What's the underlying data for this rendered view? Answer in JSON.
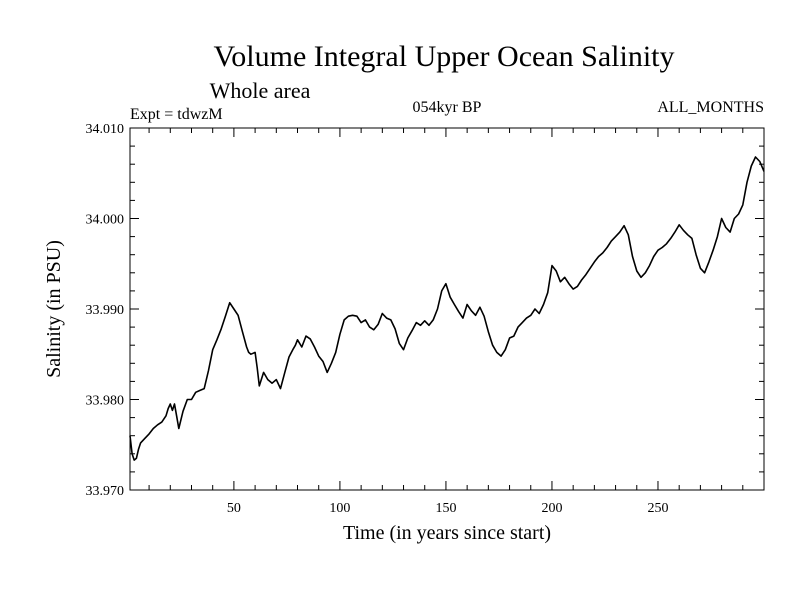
{
  "chart_data": {
    "type": "line",
    "title": "Volume Integral Upper Ocean Salinity",
    "subtitle": "Whole area",
    "annotations": {
      "left": "Expt = tdwzM",
      "center": "054kyr BP",
      "right": "ALL_MONTHS"
    },
    "xlabel": "Time (in years since start)",
    "ylabel": "Salinity (in PSU)",
    "xlim": [
      1,
      300
    ],
    "ylim": [
      33.97,
      34.01
    ],
    "xticks": [
      50,
      100,
      150,
      200,
      250
    ],
    "xtick_labels": [
      "50",
      "100",
      "150",
      "200",
      "250"
    ],
    "yticks": [
      33.97,
      33.98,
      33.99,
      34.0,
      34.01
    ],
    "ytick_labels": [
      "33.970",
      "33.980",
      "33.990",
      "34.000",
      "34.010"
    ],
    "grid": false,
    "series": [
      {
        "color": "#000000",
        "x": [
          1,
          2,
          3,
          4,
          5,
          6,
          8,
          10,
          12,
          14,
          16,
          18,
          19,
          20,
          21,
          22,
          23,
          24,
          26,
          28,
          30,
          32,
          34,
          36,
          38,
          40,
          42,
          44,
          46,
          48,
          50,
          52,
          54,
          56,
          57,
          58,
          59,
          60,
          61,
          62,
          64,
          66,
          68,
          70,
          72,
          74,
          76,
          78,
          79,
          80,
          82,
          84,
          86,
          88,
          90,
          92,
          94,
          96,
          98,
          100,
          102,
          104,
          106,
          108,
          110,
          112,
          114,
          116,
          118,
          120,
          122,
          124,
          126,
          128,
          130,
          132,
          134,
          136,
          138,
          140,
          142,
          144,
          146,
          148,
          150,
          152,
          154,
          156,
          158,
          160,
          162,
          164,
          166,
          168,
          170,
          172,
          174,
          176,
          178,
          180,
          182,
          184,
          186,
          188,
          190,
          192,
          194,
          196,
          198,
          200,
          202,
          204,
          206,
          208,
          210,
          212,
          214,
          216,
          218,
          220,
          222,
          224,
          226,
          228,
          230,
          232,
          234,
          236,
          238,
          240,
          242,
          244,
          246,
          248,
          250,
          252,
          254,
          256,
          258,
          260,
          262,
          264,
          266,
          268,
          270,
          272,
          274,
          276,
          278,
          280,
          282,
          284,
          286,
          288,
          290,
          292,
          294,
          296,
          298,
          300
        ],
        "y": [
          33.976,
          33.974,
          33.9733,
          33.9735,
          33.9745,
          33.9752,
          33.9757,
          33.9762,
          33.9768,
          33.9772,
          33.9775,
          33.9782,
          33.979,
          33.9795,
          33.9788,
          33.9795,
          33.9782,
          33.9768,
          33.9787,
          33.98,
          33.98,
          33.9808,
          33.981,
          33.9812,
          33.9832,
          33.9855,
          33.9866,
          33.9878,
          33.9892,
          33.9907,
          33.99,
          33.9893,
          33.9875,
          33.9858,
          33.9852,
          33.985,
          33.9851,
          33.9852,
          33.9835,
          33.9815,
          33.983,
          33.9822,
          33.9818,
          33.9822,
          33.9812,
          33.983,
          33.9847,
          33.9856,
          33.986,
          33.9866,
          33.9858,
          33.987,
          33.9867,
          33.9858,
          33.9848,
          33.9842,
          33.983,
          33.984,
          33.9852,
          33.9872,
          33.9888,
          33.9892,
          33.9893,
          33.9892,
          33.9885,
          33.9888,
          33.988,
          33.9877,
          33.9883,
          33.9895,
          33.989,
          33.9888,
          33.9878,
          33.9862,
          33.9855,
          33.9868,
          33.9876,
          33.9885,
          33.9882,
          33.9887,
          33.9882,
          33.9888,
          33.99,
          33.992,
          33.9928,
          33.9913,
          33.9905,
          33.9897,
          33.989,
          33.9905,
          33.9898,
          33.9893,
          33.9902,
          33.9892,
          33.9875,
          33.986,
          33.9852,
          33.9848,
          33.9855,
          33.9868,
          33.987,
          33.988,
          33.9885,
          33.989,
          33.9893,
          33.99,
          33.9895,
          33.9905,
          33.9918,
          33.9948,
          33.9942,
          33.993,
          33.9935,
          33.9928,
          33.9922,
          33.9925,
          33.9932,
          33.9938,
          33.9945,
          33.9952,
          33.9958,
          33.9962,
          33.9968,
          33.9975,
          33.998,
          33.9985,
          33.9992,
          33.9982,
          33.9958,
          33.9942,
          33.9935,
          33.994,
          33.9948,
          33.9958,
          33.9965,
          33.9968,
          33.9972,
          33.9978,
          33.9985,
          33.9993,
          33.9987,
          33.9982,
          33.9978,
          33.996,
          33.9945,
          33.994,
          33.9952,
          33.9965,
          33.998,
          34.0,
          33.999,
          33.9985,
          34.0,
          34.0005,
          34.0015,
          34.004,
          34.0058,
          34.0068,
          34.0063,
          34.0052
        ]
      }
    ]
  }
}
